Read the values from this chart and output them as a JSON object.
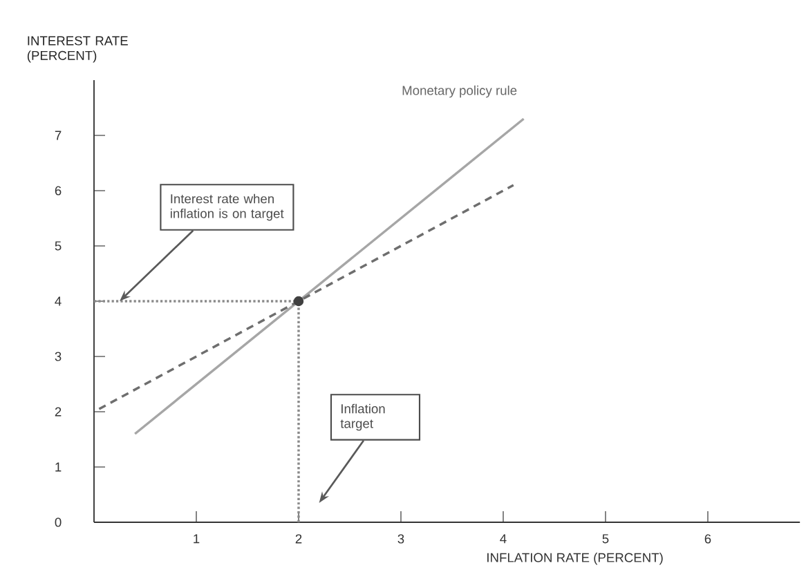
{
  "chart_data": {
    "type": "line",
    "xlabel": "INFLATION RATE (PERCENT)",
    "ylabel": "INTEREST RATE (PERCENT)",
    "xlim": [
      0,
      6.9
    ],
    "ylim": [
      0,
      8
    ],
    "xticks": [
      1,
      2,
      3,
      4,
      5,
      6
    ],
    "yticks": [
      0,
      1,
      2,
      3,
      4,
      5,
      6,
      7
    ],
    "grid": false,
    "legend": false,
    "series": [
      {
        "name": "Monetary policy rule",
        "color": "#a6a6a6",
        "line_style": "solid",
        "marker": "none",
        "x": [
          0.4,
          4.2
        ],
        "values": [
          1.6,
          7.3
        ]
      },
      {
        "color": "#6e6e6e",
        "line_style": "dashed",
        "marker": "none",
        "x": [
          0.05,
          4.1
        ],
        "values": [
          2.05,
          6.1
        ]
      },
      {
        "color": "#8a8a8a",
        "line_style": "dotted",
        "marker": "none",
        "x": [
          0,
          2
        ],
        "values": [
          4,
          4
        ]
      },
      {
        "color": "#8a8a8a",
        "line_style": "dotted",
        "marker": "none",
        "x": [
          2,
          2
        ],
        "values": [
          0,
          4
        ]
      },
      {
        "type": "scatter",
        "color": "#404040",
        "marker": "circle",
        "x": [
          2
        ],
        "values": [
          4
        ]
      }
    ],
    "annotations": [
      {
        "text": "Interest rate when inflation is on target",
        "x": 0.25,
        "y": 4
      },
      "Inflation target"
    ]
  }
}
